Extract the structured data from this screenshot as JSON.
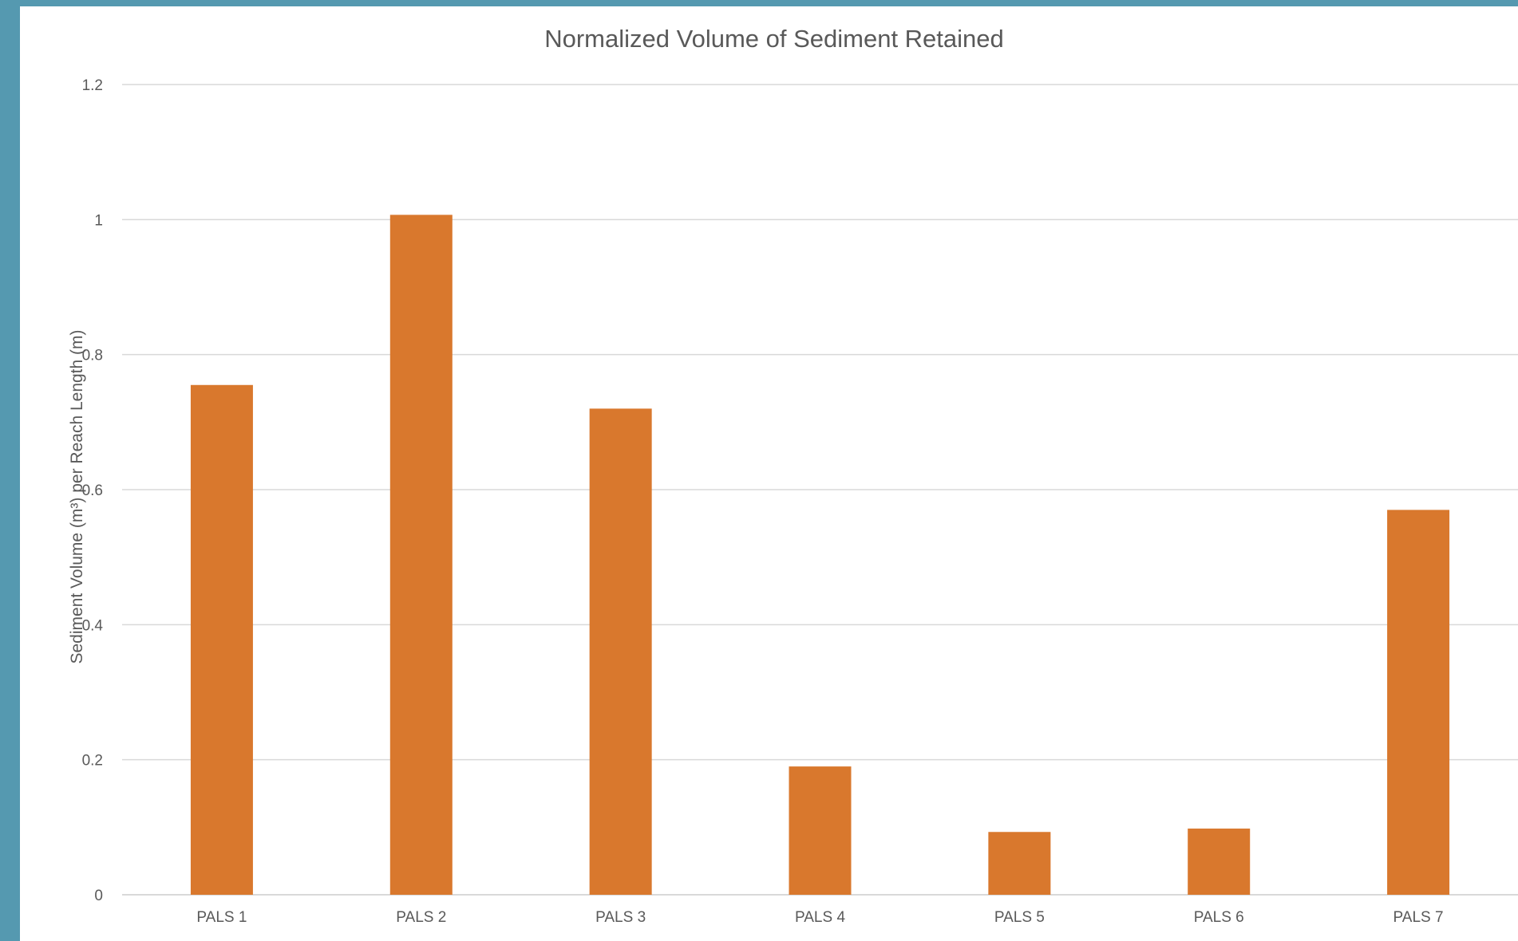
{
  "colors": {
    "frame": "#5599b0",
    "bar": "#d9782d",
    "grid": "#d9d9d9",
    "text": "#595959"
  },
  "chart_data": {
    "type": "bar",
    "title": "Normalized Volume of Sediment Retained",
    "xlabel": "",
    "ylabel": "Sediment Volume (m³) per Reach Length (m)",
    "categories": [
      "PALS 1",
      "PALS 2",
      "PALS 3",
      "PALS 4",
      "PALS 5",
      "PALS 6",
      "PALS 7"
    ],
    "values": [
      0.755,
      1.007,
      0.72,
      0.19,
      0.093,
      0.098,
      0.57
    ],
    "ylim": [
      0,
      1.2
    ],
    "yticks": [
      0,
      0.2,
      0.4,
      0.6,
      0.8,
      1,
      1.2
    ],
    "ytick_labels": [
      "0",
      "0.2",
      "0.4",
      "0.6",
      "0.8",
      "1",
      "1.2"
    ],
    "grid": true,
    "legend": "none"
  }
}
